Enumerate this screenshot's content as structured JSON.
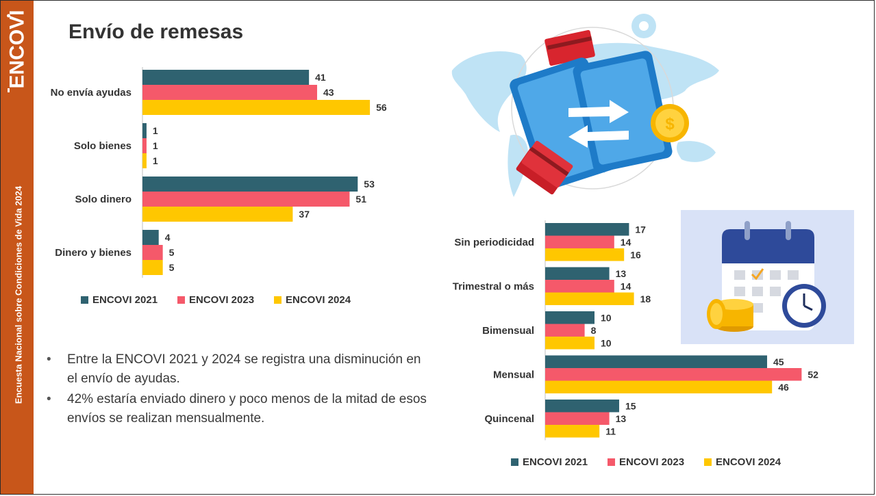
{
  "page": {
    "title": "Envío de remesas",
    "sidebar_logo": "ENCOVI",
    "sidebar_caption": "Encuesta Nacional sobre Condiciones de Vida 2024"
  },
  "bullets": [
    "Entre la ENCOVI 2021 y 2024 se registra una disminución en el envío de ayudas.",
    "42% estaría enviado dinero y poco menos de la mitad de esos envíos se realizan mensualmente."
  ],
  "colors": {
    "sidebar": "#C8561A",
    "s2021": "#2F6270",
    "s2023": "#F5596A",
    "s2024": "#FFC700"
  },
  "illustrations": [
    "world-map-transfer-illustration",
    "calendar-coins-clock-illustration"
  ],
  "chart_data": [
    {
      "type": "bar",
      "orientation": "horizontal",
      "categories": [
        "No envía ayudas",
        "Solo bienes",
        "Solo dinero",
        "Dinero y bienes"
      ],
      "series": [
        {
          "name": "ENCOVI 2021",
          "values": [
            41,
            1,
            53,
            4
          ]
        },
        {
          "name": "ENCOVI 2023",
          "values": [
            43,
            1,
            51,
            5
          ]
        },
        {
          "name": "ENCOVI 2024",
          "values": [
            56,
            1,
            37,
            5
          ]
        }
      ],
      "legend": "bottom"
    },
    {
      "type": "bar",
      "orientation": "horizontal",
      "categories": [
        "Sin periodicidad",
        "Trimestral o más",
        "Bimensual",
        "Mensual",
        "Quincenal"
      ],
      "series": [
        {
          "name": "ENCOVI 2021",
          "values": [
            17,
            13,
            10,
            45,
            15
          ]
        },
        {
          "name": "ENCOVI 2023",
          "values": [
            14,
            14,
            8,
            52,
            13
          ]
        },
        {
          "name": "ENCOVI 2024",
          "values": [
            16,
            18,
            10,
            46,
            11
          ]
        }
      ],
      "legend": "bottom"
    }
  ]
}
